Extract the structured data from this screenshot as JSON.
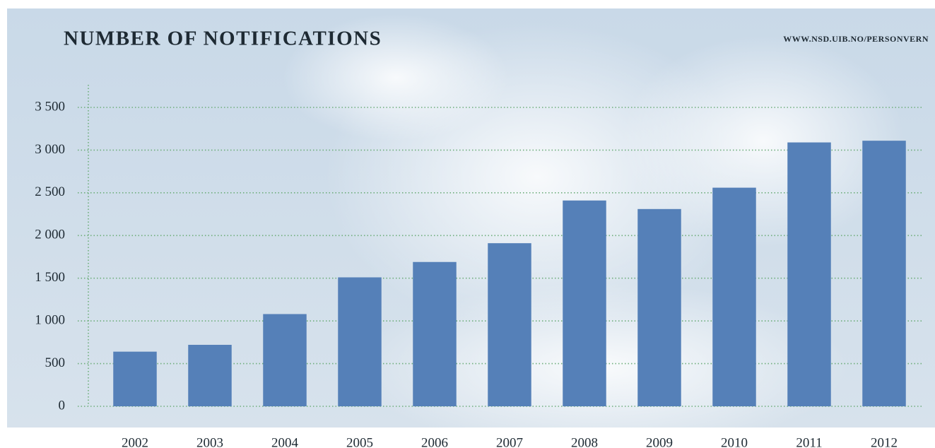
{
  "chart_data": {
    "type": "bar",
    "title": "NUMBER OF NOTIFICATIONS",
    "source": "WWW.NSD.UIB.NO/PERSONVERN",
    "categories": [
      "2002",
      "2003",
      "2004",
      "2005",
      "2006",
      "2007",
      "2008",
      "2009",
      "2010",
      "2011",
      "2012"
    ],
    "values": [
      640,
      720,
      1080,
      1510,
      1690,
      1910,
      2410,
      2310,
      2560,
      3090,
      3110
    ],
    "color": "#5580b8",
    "ylim": [
      0,
      3500
    ],
    "yticks": [
      0,
      500,
      {
        "value": 1000,
        "label": "1 000"
      },
      {
        "value": 1500,
        "label": "1 500"
      },
      {
        "value": 2000,
        "label": "2 000"
      },
      {
        "value": 2500,
        "label": "2 500"
      },
      {
        "value": 3000,
        "label": "3 000"
      },
      {
        "value": 3500,
        "label": "3 500"
      }
    ],
    "grid": true
  }
}
